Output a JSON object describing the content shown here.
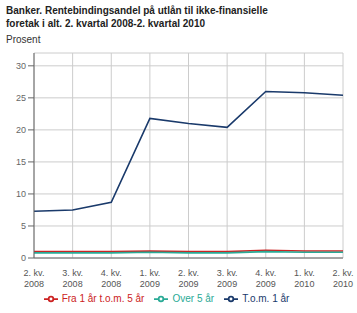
{
  "chart_data": {
    "type": "line",
    "title": "Banker. Rentebindingsandel på utlån til ikke-finansielle\nforetak i alt. 2. kvartal 2008-2. kvartal 2010",
    "ylabel": "Prosent",
    "categories": [
      "2. kv.\n2008",
      "3. kv.\n2008",
      "4. kv.\n2008",
      "1. kv.\n2009",
      "2. kv.\n2009",
      "3. kv.\n2009",
      "4. kv.\n2009",
      "1. kv.\n2010",
      "2. kv.\n2010"
    ],
    "series": [
      {
        "name": "T.o.m. 1 år",
        "color": "#1a3a6b",
        "values": [
          7.3,
          7.5,
          8.7,
          21.8,
          21.0,
          20.4,
          26.0,
          25.8,
          25.4
        ]
      },
      {
        "name": "Fra 1 år t.o.m. 5 år",
        "color": "#cc2222",
        "values": [
          1.0,
          1.0,
          1.0,
          1.1,
          1.0,
          1.0,
          1.2,
          1.1,
          1.1
        ]
      },
      {
        "name": "Over 5 år",
        "color": "#2aaa96",
        "values": [
          0.8,
          0.8,
          0.8,
          0.9,
          0.8,
          0.8,
          1.0,
          0.9,
          0.9
        ]
      }
    ],
    "ylim": [
      0,
      32
    ],
    "yticks": [
      0,
      5,
      10,
      15,
      20,
      25,
      30
    ],
    "grid": true,
    "legend": "bottom"
  }
}
